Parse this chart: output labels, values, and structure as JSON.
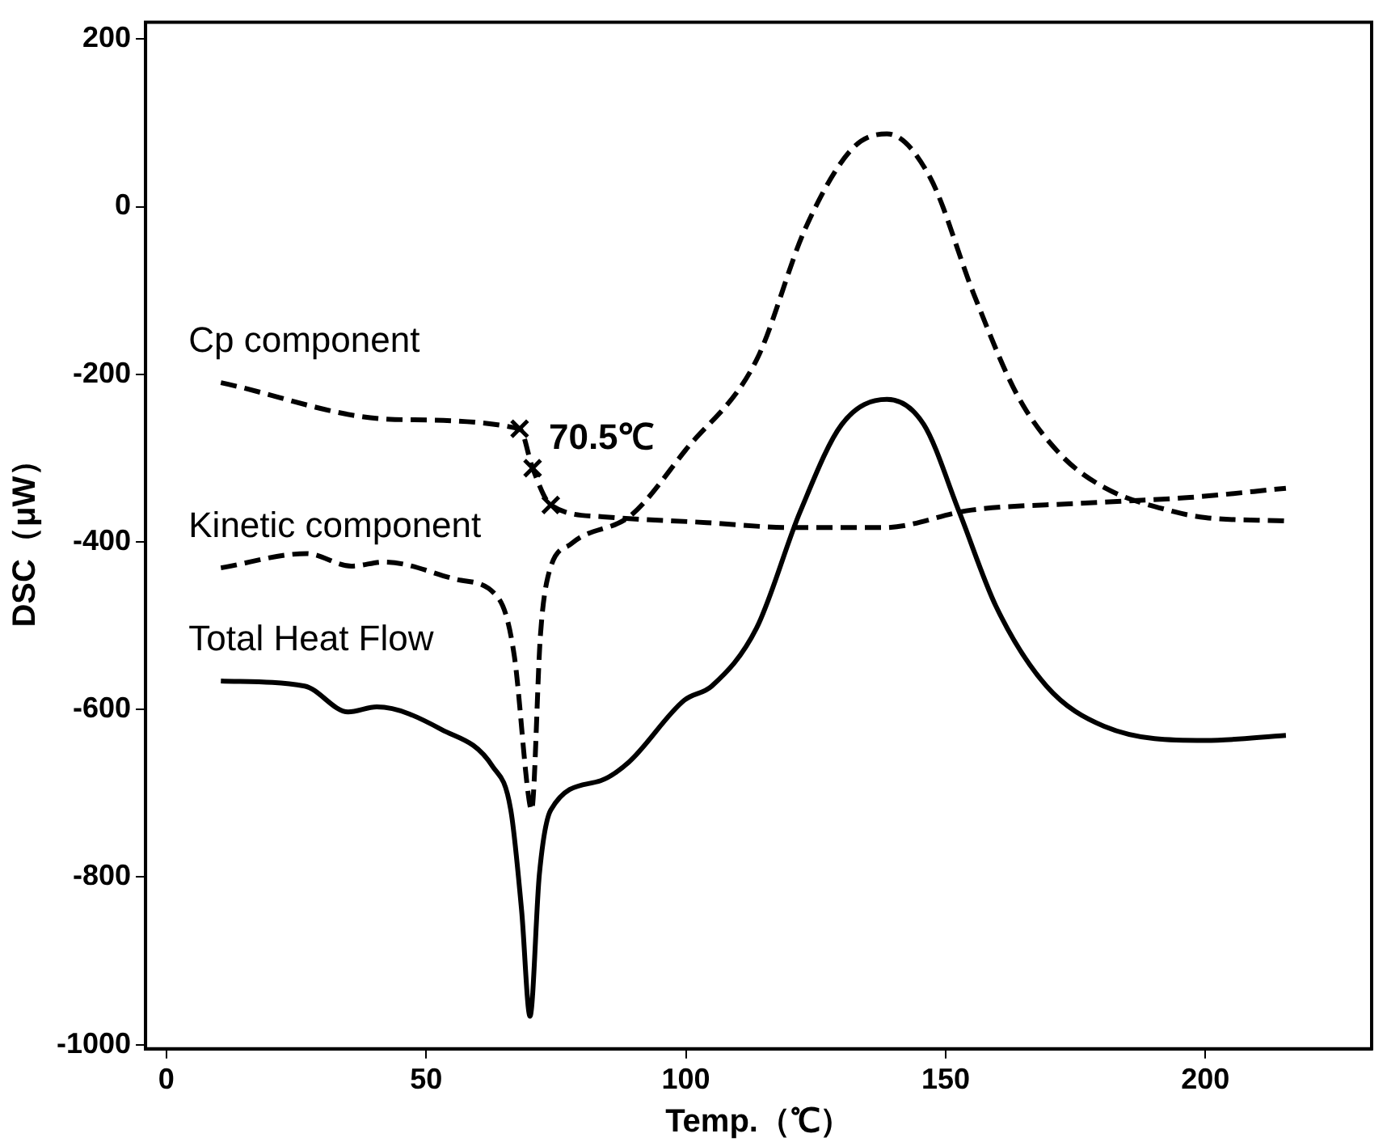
{
  "chart_data": {
    "type": "line",
    "xlabel": "Temp.（℃）",
    "ylabel": "DSC（μW）",
    "xlim": [
      -4,
      232
    ],
    "ylim": [
      -1005,
      220
    ],
    "xticks": [
      0,
      50,
      100,
      150,
      200
    ],
    "yticks": [
      -1000,
      -800,
      -600,
      -400,
      -200,
      0,
      200
    ],
    "grid": false,
    "legend": false,
    "marker": "none",
    "series": [
      {
        "name": "Cp component",
        "color": "#000000",
        "line_style": "dashed",
        "x": [
          10.5,
          44,
          68,
          70.5,
          74,
          84,
          104,
          120.6,
          138,
          155,
          176,
          197,
          215.5
        ],
        "values": [
          -210,
          -254,
          -265,
          -312,
          -356,
          -370,
          -377,
          -383,
          -383,
          -362,
          -354,
          -347,
          -336
        ]
      },
      {
        "name": "Kinetic component",
        "color": "#000000",
        "line_style": "dashed",
        "x": [
          10.5,
          27,
          35.6,
          42,
          56,
          64,
          67,
          69.7,
          70.3,
          72,
          73.4,
          78,
          89.5,
          100,
          113.6,
          123,
          132,
          138.7,
          147,
          155.4,
          163.8,
          172,
          180.5,
          194,
          200,
          215.5
        ],
        "values": [
          -431,
          -414,
          -429,
          -424,
          -445,
          -468,
          -537,
          -703,
          -720,
          -512,
          -443,
          -402,
          -368,
          -290,
          -183,
          -26,
          69,
          87,
          35,
          -104,
          -225,
          -295,
          -335,
          -364,
          -371,
          -375
        ]
      },
      {
        "name": "Total Heat Flow",
        "color": "#000000",
        "line_style": "solid",
        "x": [
          10.5,
          26.6,
          35,
          40.5,
          53,
          62.8,
          66.3,
          68.4,
          70,
          71.8,
          74,
          83.6,
          89,
          99.7,
          105,
          113.6,
          122,
          130,
          138.7,
          145.8,
          152.6,
          159.7,
          169.4,
          180.5,
          200,
          215.5
        ],
        "values": [
          -566,
          -572,
          -603,
          -597,
          -624,
          -668,
          -720,
          -841,
          -966,
          -797,
          -720,
          -685,
          -663,
          -589,
          -572,
          -503,
          -364,
          -260,
          -230,
          -260,
          -364,
          -477,
          -572,
          -620,
          -637,
          -631
        ]
      },
      {
        "type": "scatter",
        "marker": "cross",
        "color": "#000000",
        "x": [
          68,
          70.5,
          74
        ],
        "values": [
          -265,
          -312,
          -356
        ]
      }
    ],
    "annotations": [
      {
        "text": "70.5℃",
        "x": 70.5,
        "y": -312
      }
    ]
  }
}
